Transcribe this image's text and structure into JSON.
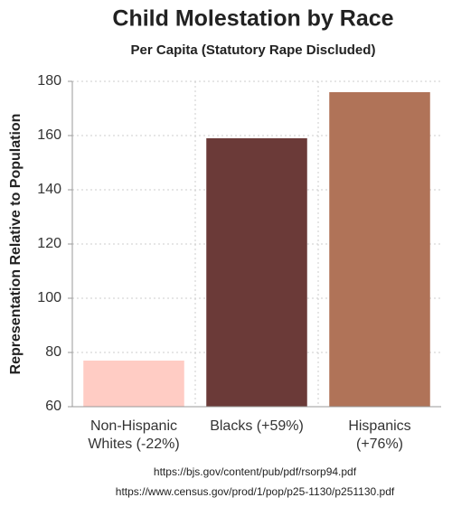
{
  "chart_data": {
    "type": "bar",
    "title": "Child Molestation by Race",
    "subtitle": "Per Capita (Statutory Rape Discluded)",
    "y_label": "Representation Relative to Population",
    "categories": [
      "Non-Hispanic Whites (-22%)",
      "Blacks (+59%)",
      "Hispanics (+76%)"
    ],
    "values": [
      77,
      159,
      176
    ],
    "colors": [
      "#ffccc4",
      "#6b3a38",
      "#b07358"
    ],
    "ylim": [
      60,
      180
    ],
    "yticks": [
      60,
      80,
      100,
      120,
      140,
      160,
      180
    ],
    "grid": true,
    "sources": [
      "https://bjs.gov/content/pub/pdf/rsorp94.pdf",
      "https://www.census.gov/prod/1/pop/p25-1130/p251130.pdf"
    ]
  }
}
